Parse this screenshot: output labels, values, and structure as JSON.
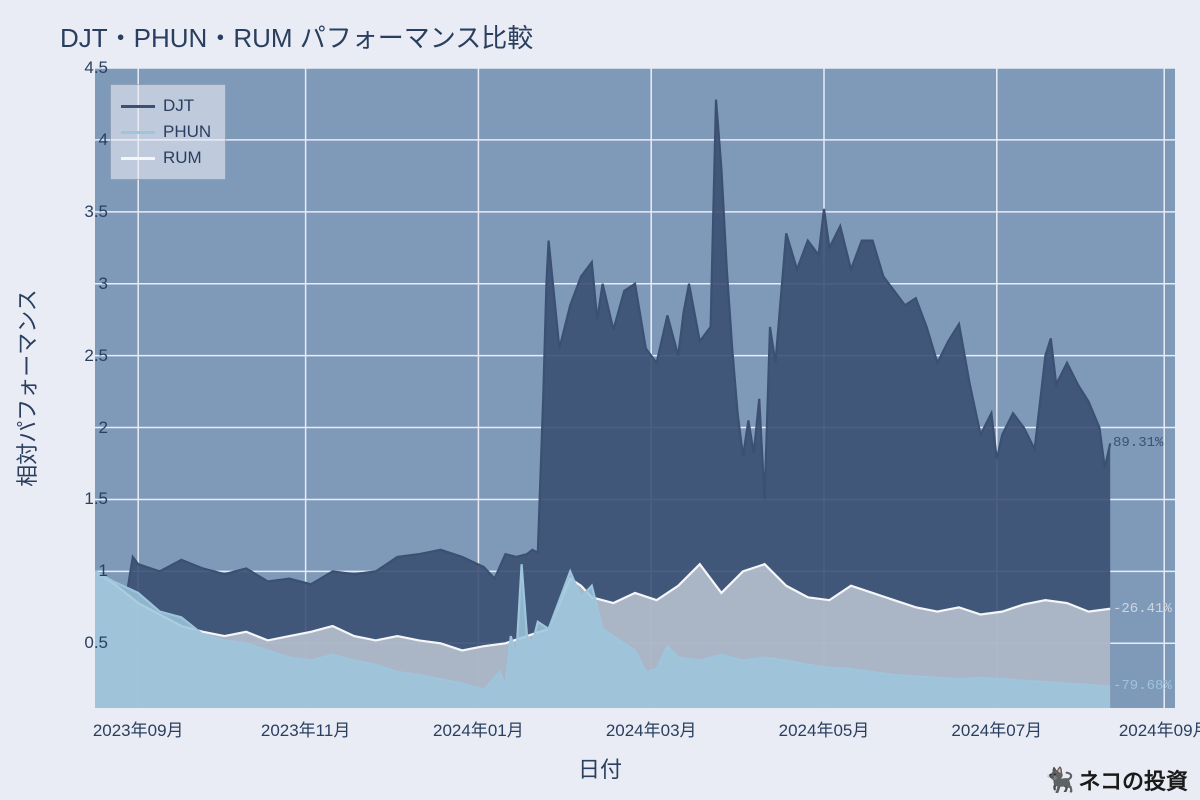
{
  "title": "DJT・PHUN・RUM パフォーマンス比較",
  "xlabel": "日付",
  "ylabel": "相対パフォーマンス",
  "watermark": "ネコの投資",
  "background_color": "#e9ecf4",
  "plot_background_color": "#7f99b8",
  "grid_color": "#e9ecf4",
  "text_color": "#2a3f5f",
  "title_fontsize": 26,
  "label_fontsize": 22,
  "tick_fontsize": 17,
  "yaxis": {
    "min": 0.05,
    "max": 4.5,
    "ticks": [
      0.5,
      1,
      1.5,
      2,
      2.5,
      3,
      3.5,
      4,
      4.5
    ]
  },
  "xaxis": {
    "ticks": [
      {
        "pos": 0.04,
        "label": "2023年09月"
      },
      {
        "pos": 0.195,
        "label": "2023年11月"
      },
      {
        "pos": 0.355,
        "label": "2024年01月"
      },
      {
        "pos": 0.515,
        "label": "2024年03月"
      },
      {
        "pos": 0.675,
        "label": "2024年05月"
      },
      {
        "pos": 0.835,
        "label": "2024年07月"
      },
      {
        "pos": 0.99,
        "label": "2024年09月"
      }
    ]
  },
  "legend": [
    {
      "label": "DJT",
      "color": "#3b5073"
    },
    {
      "label": "PHUN",
      "color": "#9ec5dc"
    },
    {
      "label": "RUM",
      "color": "#f5f6f8"
    }
  ],
  "end_labels": [
    {
      "text": "89.31%",
      "y": 1.89,
      "color": "#3b5073"
    },
    {
      "text": "-26.41%",
      "y": 0.74,
      "color": "#d0d6e0"
    },
    {
      "text": "-79.68%",
      "y": 0.2,
      "color": "#9ec5dc"
    }
  ],
  "series": [
    {
      "name": "DJT",
      "color": "#3b5073",
      "fill": "#3b5073",
      "fill_opacity": 0.9,
      "points": [
        [
          0.0,
          1.0
        ],
        [
          0.02,
          0.92
        ],
        [
          0.03,
          0.87
        ],
        [
          0.035,
          1.1
        ],
        [
          0.04,
          1.05
        ],
        [
          0.06,
          1.0
        ],
        [
          0.08,
          1.08
        ],
        [
          0.1,
          1.02
        ],
        [
          0.12,
          0.98
        ],
        [
          0.14,
          1.02
        ],
        [
          0.16,
          0.93
        ],
        [
          0.18,
          0.95
        ],
        [
          0.2,
          0.91
        ],
        [
          0.22,
          1.0
        ],
        [
          0.24,
          0.98
        ],
        [
          0.26,
          1.0
        ],
        [
          0.28,
          1.1
        ],
        [
          0.3,
          1.12
        ],
        [
          0.32,
          1.15
        ],
        [
          0.34,
          1.1
        ],
        [
          0.36,
          1.03
        ],
        [
          0.37,
          0.95
        ],
        [
          0.38,
          1.12
        ],
        [
          0.39,
          1.1
        ],
        [
          0.4,
          1.12
        ],
        [
          0.405,
          1.15
        ],
        [
          0.41,
          1.13
        ],
        [
          0.415,
          2.2
        ],
        [
          0.418,
          3.0
        ],
        [
          0.42,
          3.3
        ],
        [
          0.43,
          2.55
        ],
        [
          0.44,
          2.85
        ],
        [
          0.45,
          3.05
        ],
        [
          0.46,
          3.15
        ],
        [
          0.465,
          2.75
        ],
        [
          0.47,
          3.0
        ],
        [
          0.48,
          2.68
        ],
        [
          0.49,
          2.95
        ],
        [
          0.5,
          3.0
        ],
        [
          0.51,
          2.55
        ],
        [
          0.52,
          2.45
        ],
        [
          0.53,
          2.78
        ],
        [
          0.54,
          2.5
        ],
        [
          0.545,
          2.8
        ],
        [
          0.55,
          3.0
        ],
        [
          0.56,
          2.6
        ],
        [
          0.57,
          2.7
        ],
        [
          0.575,
          4.28
        ],
        [
          0.58,
          3.8
        ],
        [
          0.585,
          3.1
        ],
        [
          0.59,
          2.55
        ],
        [
          0.595,
          2.1
        ],
        [
          0.6,
          1.8
        ],
        [
          0.605,
          2.05
        ],
        [
          0.61,
          1.82
        ],
        [
          0.615,
          2.2
        ],
        [
          0.62,
          1.5
        ],
        [
          0.625,
          2.7
        ],
        [
          0.63,
          2.45
        ],
        [
          0.64,
          3.35
        ],
        [
          0.65,
          3.1
        ],
        [
          0.66,
          3.3
        ],
        [
          0.67,
          3.2
        ],
        [
          0.675,
          3.52
        ],
        [
          0.68,
          3.25
        ],
        [
          0.69,
          3.4
        ],
        [
          0.7,
          3.1
        ],
        [
          0.71,
          3.3
        ],
        [
          0.72,
          3.3
        ],
        [
          0.73,
          3.05
        ],
        [
          0.74,
          2.95
        ],
        [
          0.75,
          2.85
        ],
        [
          0.76,
          2.9
        ],
        [
          0.77,
          2.7
        ],
        [
          0.78,
          2.45
        ],
        [
          0.79,
          2.6
        ],
        [
          0.8,
          2.72
        ],
        [
          0.81,
          2.3
        ],
        [
          0.82,
          1.95
        ],
        [
          0.83,
          2.1
        ],
        [
          0.835,
          1.78
        ],
        [
          0.84,
          1.95
        ],
        [
          0.85,
          2.1
        ],
        [
          0.86,
          2.0
        ],
        [
          0.87,
          1.85
        ],
        [
          0.88,
          2.5
        ],
        [
          0.885,
          2.62
        ],
        [
          0.89,
          2.3
        ],
        [
          0.9,
          2.45
        ],
        [
          0.91,
          2.3
        ],
        [
          0.92,
          2.18
        ],
        [
          0.93,
          2.0
        ],
        [
          0.935,
          1.72
        ],
        [
          0.94,
          1.89
        ]
      ]
    },
    {
      "name": "RUM",
      "color": "#f5f6f8",
      "fill": "#cdd5e0",
      "fill_opacity": 0.75,
      "points": [
        [
          0.0,
          1.0
        ],
        [
          0.02,
          0.9
        ],
        [
          0.04,
          0.78
        ],
        [
          0.06,
          0.7
        ],
        [
          0.08,
          0.62
        ],
        [
          0.1,
          0.58
        ],
        [
          0.12,
          0.55
        ],
        [
          0.14,
          0.58
        ],
        [
          0.16,
          0.52
        ],
        [
          0.18,
          0.55
        ],
        [
          0.2,
          0.58
        ],
        [
          0.22,
          0.62
        ],
        [
          0.24,
          0.55
        ],
        [
          0.26,
          0.52
        ],
        [
          0.28,
          0.55
        ],
        [
          0.3,
          0.52
        ],
        [
          0.32,
          0.5
        ],
        [
          0.34,
          0.45
        ],
        [
          0.36,
          0.48
        ],
        [
          0.38,
          0.5
        ],
        [
          0.4,
          0.55
        ],
        [
          0.42,
          0.6
        ],
        [
          0.44,
          0.95
        ],
        [
          0.45,
          0.9
        ],
        [
          0.46,
          0.82
        ],
        [
          0.48,
          0.78
        ],
        [
          0.5,
          0.85
        ],
        [
          0.52,
          0.8
        ],
        [
          0.54,
          0.9
        ],
        [
          0.56,
          1.05
        ],
        [
          0.57,
          0.95
        ],
        [
          0.58,
          0.85
        ],
        [
          0.6,
          1.0
        ],
        [
          0.62,
          1.05
        ],
        [
          0.64,
          0.9
        ],
        [
          0.66,
          0.82
        ],
        [
          0.68,
          0.8
        ],
        [
          0.7,
          0.9
        ],
        [
          0.72,
          0.85
        ],
        [
          0.74,
          0.8
        ],
        [
          0.76,
          0.75
        ],
        [
          0.78,
          0.72
        ],
        [
          0.8,
          0.75
        ],
        [
          0.82,
          0.7
        ],
        [
          0.84,
          0.72
        ],
        [
          0.86,
          0.77
        ],
        [
          0.88,
          0.8
        ],
        [
          0.9,
          0.78
        ],
        [
          0.92,
          0.72
        ],
        [
          0.94,
          0.74
        ]
      ]
    },
    {
      "name": "PHUN",
      "color": "#9ec5dc",
      "fill": "#9ec5dc",
      "fill_opacity": 0.85,
      "points": [
        [
          0.0,
          1.0
        ],
        [
          0.02,
          0.92
        ],
        [
          0.04,
          0.85
        ],
        [
          0.06,
          0.72
        ],
        [
          0.08,
          0.68
        ],
        [
          0.1,
          0.56
        ],
        [
          0.12,
          0.52
        ],
        [
          0.14,
          0.5
        ],
        [
          0.16,
          0.45
        ],
        [
          0.18,
          0.4
        ],
        [
          0.2,
          0.38
        ],
        [
          0.22,
          0.42
        ],
        [
          0.24,
          0.38
        ],
        [
          0.26,
          0.35
        ],
        [
          0.28,
          0.3
        ],
        [
          0.3,
          0.28
        ],
        [
          0.32,
          0.25
        ],
        [
          0.34,
          0.22
        ],
        [
          0.36,
          0.18
        ],
        [
          0.375,
          0.3
        ],
        [
          0.38,
          0.2
        ],
        [
          0.385,
          0.55
        ],
        [
          0.39,
          0.4
        ],
        [
          0.395,
          1.05
        ],
        [
          0.4,
          0.55
        ],
        [
          0.405,
          0.5
        ],
        [
          0.41,
          0.65
        ],
        [
          0.42,
          0.6
        ],
        [
          0.44,
          1.0
        ],
        [
          0.45,
          0.82
        ],
        [
          0.46,
          0.9
        ],
        [
          0.47,
          0.6
        ],
        [
          0.48,
          0.55
        ],
        [
          0.49,
          0.5
        ],
        [
          0.5,
          0.45
        ],
        [
          0.51,
          0.3
        ],
        [
          0.52,
          0.32
        ],
        [
          0.53,
          0.48
        ],
        [
          0.54,
          0.4
        ],
        [
          0.56,
          0.38
        ],
        [
          0.58,
          0.42
        ],
        [
          0.6,
          0.38
        ],
        [
          0.62,
          0.4
        ],
        [
          0.64,
          0.38
        ],
        [
          0.66,
          0.35
        ],
        [
          0.68,
          0.33
        ],
        [
          0.7,
          0.32
        ],
        [
          0.72,
          0.3
        ],
        [
          0.74,
          0.28
        ],
        [
          0.76,
          0.27
        ],
        [
          0.78,
          0.26
        ],
        [
          0.8,
          0.25
        ],
        [
          0.82,
          0.26
        ],
        [
          0.84,
          0.25
        ],
        [
          0.86,
          0.24
        ],
        [
          0.88,
          0.23
        ],
        [
          0.9,
          0.22
        ],
        [
          0.92,
          0.21
        ],
        [
          0.94,
          0.2
        ]
      ]
    }
  ]
}
